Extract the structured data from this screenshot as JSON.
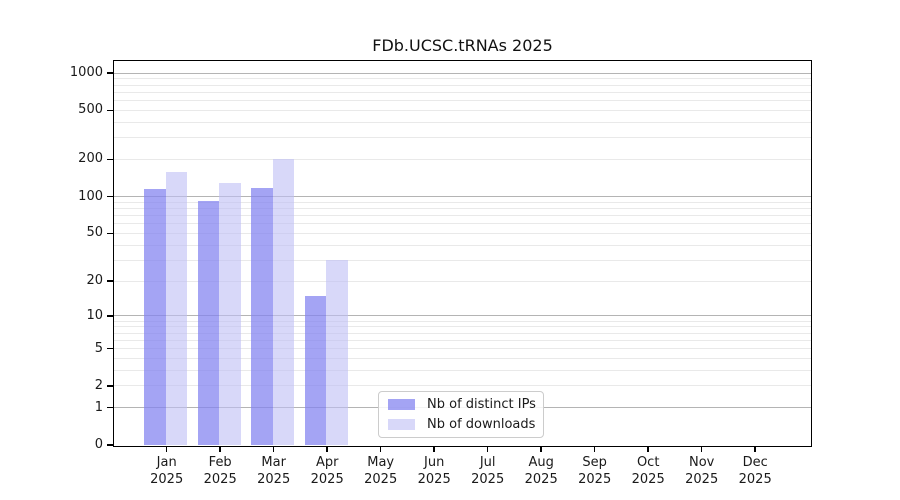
{
  "chart_data": {
    "type": "bar",
    "title": "FDb.UCSC.tRNAs 2025",
    "scale": "log1p",
    "ylim": [
      0,
      1250
    ],
    "y_ticks": [
      0,
      1,
      2,
      5,
      10,
      20,
      50,
      100,
      200,
      500,
      1000
    ],
    "major_gridline_values": [
      1,
      10,
      100,
      1000
    ],
    "grid": true,
    "legend_position": "bottom-center",
    "categories": [
      {
        "month": "Jan",
        "year": "2025"
      },
      {
        "month": "Feb",
        "year": "2025"
      },
      {
        "month": "Mar",
        "year": "2025"
      },
      {
        "month": "Apr",
        "year": "2025"
      },
      {
        "month": "May",
        "year": "2025"
      },
      {
        "month": "Jun",
        "year": "2025"
      },
      {
        "month": "Jul",
        "year": "2025"
      },
      {
        "month": "Aug",
        "year": "2025"
      },
      {
        "month": "Sep",
        "year": "2025"
      },
      {
        "month": "Oct",
        "year": "2025"
      },
      {
        "month": "Nov",
        "year": "2025"
      },
      {
        "month": "Dec",
        "year": "2025"
      }
    ],
    "series": [
      {
        "name": "Nb of distinct IPs",
        "color": "rgba(130,130,240,0.73)",
        "values": [
          116,
          92,
          118,
          15,
          null,
          null,
          null,
          null,
          null,
          null,
          null,
          null
        ]
      },
      {
        "name": "Nb of downloads",
        "color": "rgba(190,190,245,0.60)",
        "values": [
          158,
          130,
          200,
          30,
          null,
          null,
          null,
          null,
          null,
          null,
          null,
          null
        ]
      }
    ]
  },
  "colors": {
    "spine": "#000000",
    "grid_minor": "#e9e9e9",
    "grid_major": "#b4b4b4",
    "legend_border": "#cccccc",
    "text": "#1a1a1a"
  }
}
